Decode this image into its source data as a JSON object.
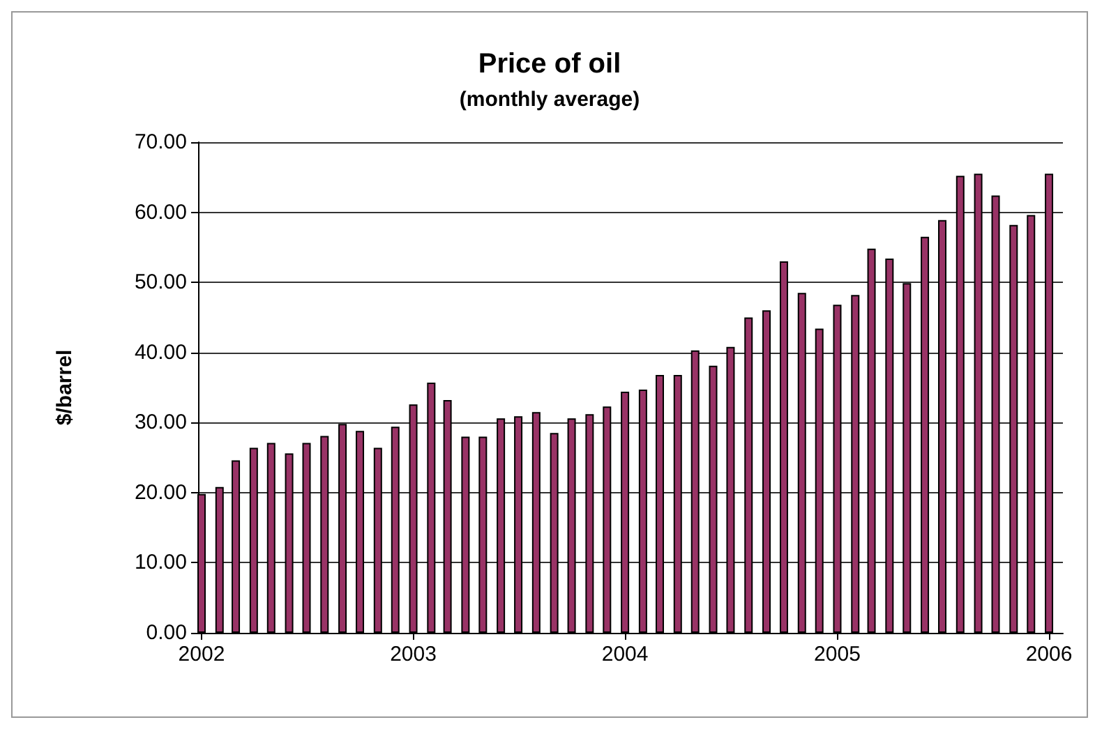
{
  "chart_data": {
    "type": "bar",
    "title": "Price of oil",
    "subtitle": "(monthly average)",
    "ylabel": "$/barrel",
    "x": [
      "2002-01",
      "2002-02",
      "2002-03",
      "2002-04",
      "2002-05",
      "2002-06",
      "2002-07",
      "2002-08",
      "2002-09",
      "2002-10",
      "2002-11",
      "2002-12",
      "2003-01",
      "2003-02",
      "2003-03",
      "2003-04",
      "2003-05",
      "2003-06",
      "2003-07",
      "2003-08",
      "2003-09",
      "2003-10",
      "2003-11",
      "2003-12",
      "2004-01",
      "2004-02",
      "2004-03",
      "2004-04",
      "2004-05",
      "2004-06",
      "2004-07",
      "2004-08",
      "2004-09",
      "2004-10",
      "2004-11",
      "2004-12",
      "2005-01",
      "2005-02",
      "2005-03",
      "2005-04",
      "2005-05",
      "2005-06",
      "2005-07",
      "2005-08",
      "2005-09",
      "2005-10",
      "2005-11",
      "2005-12",
      "2006-01"
    ],
    "values": [
      19.8,
      20.8,
      24.6,
      26.4,
      27.1,
      25.6,
      27.1,
      28.1,
      29.8,
      28.8,
      26.4,
      29.4,
      32.6,
      35.7,
      33.2,
      28.0,
      28.0,
      30.6,
      30.9,
      31.5,
      28.5,
      30.6,
      31.2,
      32.3,
      34.4,
      34.7,
      36.8,
      36.8,
      40.3,
      38.1,
      40.8,
      45.0,
      46.0,
      53.0,
      48.5,
      43.4,
      46.8,
      48.2,
      54.8,
      53.4,
      49.9,
      56.5,
      58.9,
      65.2,
      65.5,
      62.4,
      58.2,
      59.6,
      65.5
    ],
    "color": "#993366",
    "xlim": [
      "2001-12-26",
      "2006-01-25"
    ],
    "xticks": [
      {
        "value": "2002-01-01",
        "label": "2002"
      },
      {
        "value": "2003-01-01",
        "label": "2003"
      },
      {
        "value": "2004-01-01",
        "label": "2004"
      },
      {
        "value": "2005-01-01",
        "label": "2005"
      },
      {
        "value": "2006-01-01",
        "label": "2006"
      }
    ],
    "ylim": [
      0,
      70
    ],
    "yticks": [
      {
        "value": 0,
        "label": "0.00"
      },
      {
        "value": 10,
        "label": "10.00"
      },
      {
        "value": 20,
        "label": "20.00"
      },
      {
        "value": 30,
        "label": "30.00"
      },
      {
        "value": 40,
        "label": "40.00"
      },
      {
        "value": 50,
        "label": "50.00"
      },
      {
        "value": 60,
        "label": "60.00"
      },
      {
        "value": 70,
        "label": "70.00"
      }
    ],
    "grid": "y"
  }
}
